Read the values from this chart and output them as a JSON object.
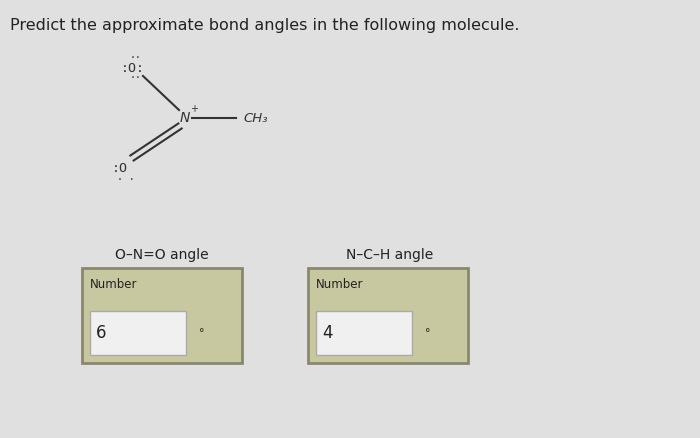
{
  "title": "Predict the approximate bond angles in the following molecule.",
  "title_fontsize": 11.5,
  "bg_color": "#e0e0e0",
  "label1": "O–N=O angle",
  "label2": "N–C–H angle",
  "box1_label": "Number",
  "box2_label": "Number",
  "box1_value": "6",
  "box2_value": "4",
  "degree_symbol": "°",
  "text_color": "#222222",
  "box_bg": "#c8c8a0",
  "box_border": "#888870",
  "inner_bg": "#f0f0f0",
  "mol_color": "#333333"
}
